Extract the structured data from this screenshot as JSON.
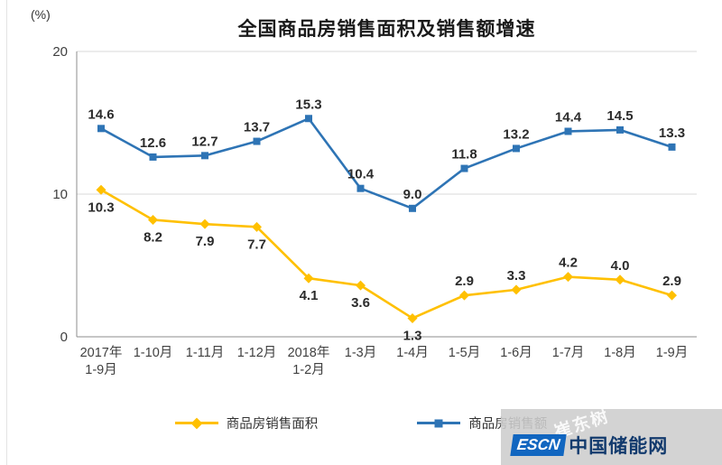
{
  "chart_data": {
    "type": "line",
    "title": "全国商品房销售面积及销售额增速",
    "unit_label": "(%)",
    "categories": [
      "2017年\n1-9月",
      "1-10月",
      "1-11月",
      "1-12月",
      "2018年\n1-2月",
      "1-3月",
      "1-4月",
      "1-5月",
      "1-6月",
      "1-7月",
      "1-8月",
      "1-9月"
    ],
    "series": [
      {
        "name": "商品房销售面积",
        "color": "#FFC000",
        "marker": "diamond",
        "values": [
          10.3,
          8.2,
          7.9,
          7.7,
          4.1,
          3.6,
          1.3,
          2.9,
          3.3,
          4.2,
          4.0,
          2.9
        ],
        "label_positions": [
          "below",
          "below",
          "below",
          "below",
          "below",
          "below",
          "below",
          "above",
          "above",
          "above",
          "above",
          "above"
        ]
      },
      {
        "name": "商品房销售额",
        "color": "#2E74B5",
        "marker": "square",
        "values": [
          14.6,
          12.6,
          12.7,
          13.7,
          15.3,
          10.4,
          9.0,
          11.8,
          13.2,
          14.4,
          14.5,
          13.3
        ],
        "label_positions": [
          "above",
          "above",
          "above",
          "above",
          "above",
          "above",
          "above",
          "above",
          "above",
          "above",
          "above",
          "above"
        ]
      }
    ],
    "ylim": [
      0,
      20
    ],
    "yticks": [
      0,
      10,
      20
    ],
    "grid": "horizontal",
    "legend_position": "bottom",
    "colors": {
      "grid_line": "#d9d9d9",
      "axis_line": "#8c8c8c",
      "label_text": "#2b2b2b"
    }
  },
  "watermark": {
    "diagonal_text": "崔东树",
    "logo_badge": "ESCN",
    "logo_text": "中国储能网",
    "badge_color": "#1166c0",
    "logo_text_color": "#123a6d"
  }
}
